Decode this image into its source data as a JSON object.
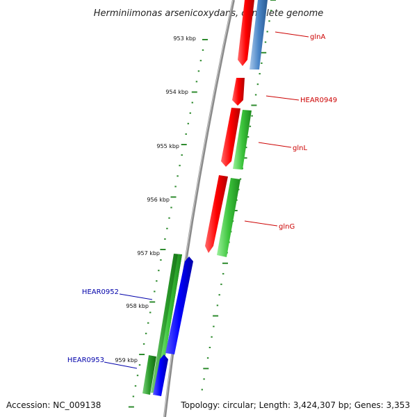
{
  "title": "Herminiimonas arsenicoxydans, complete genome",
  "footer": {
    "accession": "Accession: NC_009138",
    "topology": "Topology: circular; Length: 3,424,307 bp; Genes: 3,353"
  },
  "kbp_labels": [
    "953 kbp",
    "954 kbp",
    "955 kbp",
    "956 kbp",
    "957 kbp",
    "958 kbp",
    "959 kbp"
  ],
  "gene_labels": [
    "glnA",
    "HEAR0949",
    "glnL",
    "glnG",
    "HEAR0952",
    "HEAR0953"
  ],
  "colors": {
    "backbone": "#8a8a8a",
    "tick": "#2e8b2e",
    "forward_cds": "#ff0000",
    "forward_gene": "#3cc43c",
    "forward_gene_alt": "#4a86c8",
    "reverse_cds": "#0000ff",
    "reverse_gene": "#2a9a2a",
    "label_forward": "#cc0000",
    "label_reverse": "#0000aa"
  }
}
